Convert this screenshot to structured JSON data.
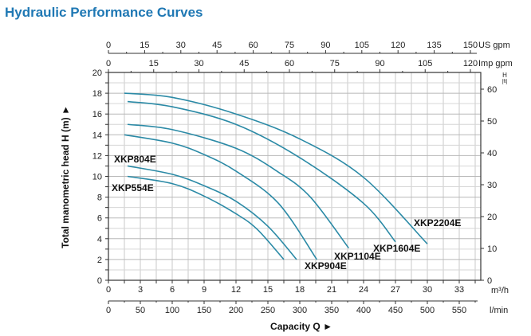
{
  "title": "Hydraulic Performance Curves",
  "chart_data": {
    "type": "line",
    "title": "Hydraulic Performance Curves",
    "xlabel": "Capacity Q",
    "ylabel": "Total manometric head H (m)",
    "xlim": [
      0,
      35
    ],
    "ylim": [
      0,
      20
    ],
    "grid": true,
    "x_unit": "m³/h",
    "x_ticks": [
      0,
      3,
      6,
      9,
      12,
      15,
      18,
      21,
      24,
      27,
      30,
      33
    ],
    "y_ticks": [
      0,
      2,
      4,
      6,
      8,
      10,
      12,
      14,
      16,
      18,
      20
    ],
    "secondary_axes": {
      "us_gpm": {
        "unit": "US gpm",
        "ticks": [
          0,
          15,
          30,
          45,
          60,
          75,
          90,
          105,
          120,
          135,
          150
        ]
      },
      "imp_gpm": {
        "unit": "Imp gpm",
        "ticks": [
          0,
          15,
          30,
          45,
          60,
          75,
          90,
          105,
          120
        ]
      },
      "l_min": {
        "unit": "l/min",
        "ticks": [
          0,
          50,
          100,
          150,
          200,
          250,
          300,
          350,
          400,
          450,
          500,
          550
        ]
      },
      "ft": {
        "unit_top": "H",
        "unit_bottom": "[ft]",
        "ticks": [
          0,
          10,
          20,
          30,
          40,
          50,
          60
        ]
      }
    },
    "series": [
      {
        "name": "XKP554E",
        "points": [
          [
            1.8,
            10
          ],
          [
            6,
            9.3
          ],
          [
            9,
            8.1
          ],
          [
            12,
            6.4
          ],
          [
            14,
            4.9
          ],
          [
            16.5,
            2
          ]
        ]
      },
      {
        "name": "XKP804E",
        "points": [
          [
            1.8,
            11
          ],
          [
            6,
            10.2
          ],
          [
            9,
            9.1
          ],
          [
            12,
            7.6
          ],
          [
            15,
            5.2
          ],
          [
            17.7,
            2
          ]
        ]
      },
      {
        "name": "XKP904E",
        "points": [
          [
            1.5,
            14
          ],
          [
            6,
            13.2
          ],
          [
            9,
            12.1
          ],
          [
            12,
            10.5
          ],
          [
            16,
            7.4
          ],
          [
            19.6,
            2
          ]
        ]
      },
      {
        "name": "XKP1104E",
        "points": [
          [
            1.8,
            15
          ],
          [
            6,
            14.5
          ],
          [
            12,
            12.7
          ],
          [
            16,
            10.4
          ],
          [
            19,
            8.0
          ],
          [
            22.6,
            3.1
          ]
        ]
      },
      {
        "name": "XKP1604E",
        "points": [
          [
            1.8,
            17.2
          ],
          [
            6,
            16.7
          ],
          [
            12,
            15
          ],
          [
            18,
            11.8
          ],
          [
            24,
            7.4
          ],
          [
            27,
            3.7
          ]
        ]
      },
      {
        "name": "XKP2204E",
        "points": [
          [
            1.5,
            18
          ],
          [
            6,
            17.6
          ],
          [
            12,
            16
          ],
          [
            18,
            13.6
          ],
          [
            24,
            9.9
          ],
          [
            30,
            3.5
          ]
        ]
      }
    ],
    "line_color": "#2b8aa6"
  }
}
